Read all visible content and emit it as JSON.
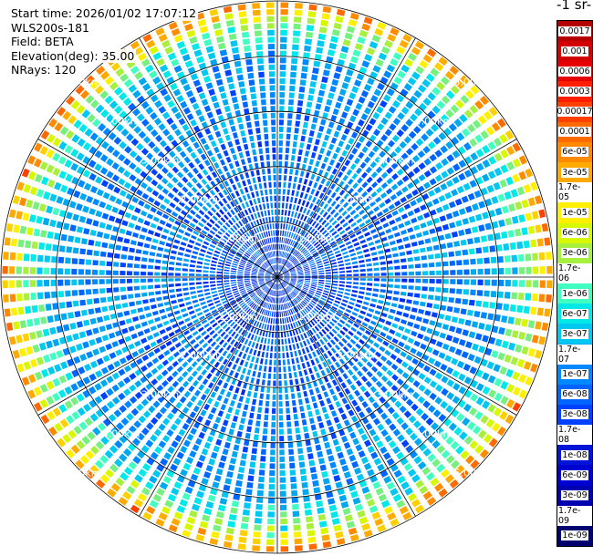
{
  "header": {
    "start_time": "Start time: 2026/01/02 17:07:12",
    "instrument": "WLS200s-181",
    "field": "Field: BETA",
    "elevation": "Elevation(deg): 35.00",
    "nrays": "NRays: 120"
  },
  "colorbar": {
    "unit_label": "-1 sr-",
    "labels": [
      "0.0017",
      "0.001",
      "0.0006",
      "0.0003",
      "0.00017",
      "0.0001",
      "6e-05",
      "3e-05",
      "1.7e-05",
      "1e-05",
      "6e-06",
      "3e-06",
      "1.7e-06",
      "1e-06",
      "6e-07",
      "3e-07",
      "1.7e-07",
      "1e-07",
      "6e-08",
      "3e-08",
      "1.7e-08",
      "1e-08",
      "6e-09",
      "3e-09",
      "1.7e-09",
      "1e-09"
    ],
    "colors": [
      "#b40000",
      "#d20000",
      "#e60000",
      "#ff1e00",
      "#ff4000",
      "#ff6a00",
      "#ff8a00",
      "#ffaa00",
      "#ffd000",
      "#fff000",
      "#d8f800",
      "#a8f040",
      "#78f080",
      "#40ffc0",
      "#00e8e8",
      "#00c8f0",
      "#00a8f0",
      "#0088ff",
      "#0064ff",
      "#0040ff",
      "#0028e8",
      "#0014d8",
      "#0000d0",
      "#0000b0",
      "#000090",
      "#000070"
    ]
  },
  "chart_data": {
    "type": "heatmap",
    "projection": "polar PPI",
    "field": "BETA",
    "elevation_deg": 35.0,
    "n_rays": 120,
    "range_max_km": 5.0,
    "range_rings_km": [
      1.0,
      2.0,
      3.0,
      4.0,
      5.0
    ],
    "ring_labels": [
      "1.00km",
      "2.00km",
      "3.00km",
      "4.00km",
      "5.00km"
    ],
    "color_scale": "log",
    "value_range": [
      1e-09,
      0.0017
    ],
    "range_profile": [
      {
        "range_km": 0.5,
        "beta": 3e-08
      },
      {
        "range_km": 1.0,
        "beta": 4e-08
      },
      {
        "range_km": 2.0,
        "beta": 7e-08
      },
      {
        "range_km": 3.0,
        "beta": 1e-07
      },
      {
        "range_km": 4.0,
        "beta": 1.5e-07
      },
      {
        "range_km": 4.6,
        "beta": 1.7e-06
      },
      {
        "range_km": 4.9,
        "beta": 6e-05
      },
      {
        "range_km": 5.0,
        "beta": 1e-05
      }
    ]
  }
}
